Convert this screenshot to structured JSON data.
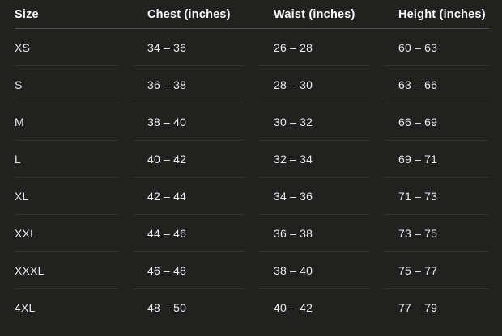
{
  "chart_data": {
    "type": "table",
    "columns": [
      "Size",
      "Chest (inches)",
      "Waist (inches)",
      "Height (inches)"
    ],
    "rows": [
      [
        "XS",
        "34 – 36",
        "26 – 28",
        "60 – 63"
      ],
      [
        "S",
        "36 – 38",
        "28 – 30",
        "63 – 66"
      ],
      [
        "M",
        "38 – 40",
        "30 – 32",
        "66 – 69"
      ],
      [
        "L",
        "40 – 42",
        "32 – 34",
        "69 – 71"
      ],
      [
        "XL",
        "42 – 44",
        "34 – 36",
        "71 – 73"
      ],
      [
        "XXL",
        "44 – 46",
        "36 – 38",
        "73 – 75"
      ],
      [
        "XXXL",
        "46 – 48",
        "38 – 40",
        "75 – 77"
      ],
      [
        "4XL",
        "48 – 50",
        "40 – 42",
        "77 – 79"
      ]
    ],
    "layout": {
      "alignment": "left",
      "header_divider": true,
      "row_dividers": true
    }
  },
  "colors": {
    "background": "#212120",
    "header_text": "#fafafa",
    "cell_text": "#ebebeb",
    "header_divider": "#4f4f4f",
    "row_divider": "#343433"
  }
}
